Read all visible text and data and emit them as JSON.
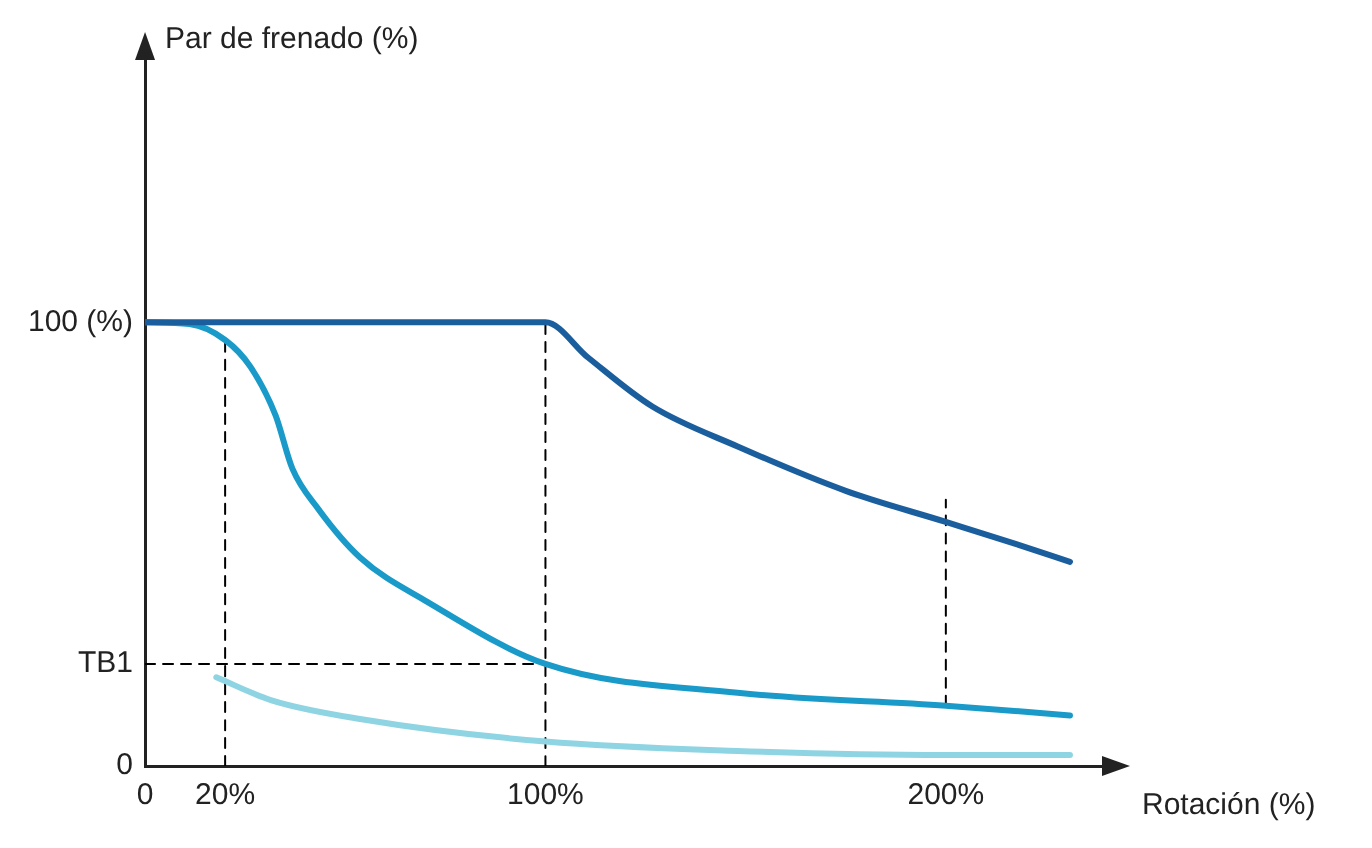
{
  "chart_data": {
    "type": "line",
    "xlabel": "Rotación (%)",
    "ylabel": "Par de frenado (%)",
    "xlim": [
      0,
      240
    ],
    "xticks": [
      0,
      {
        "value": 20,
        "label": "20%"
      },
      {
        "value": 100,
        "label": "100%"
      },
      {
        "value": 200,
        "label": "200%"
      }
    ],
    "ylim": [
      0,
      160
    ],
    "yticks": [
      0,
      {
        "value": 23,
        "label": "TB1"
      },
      {
        "value": 100,
        "label": "100 (%)"
      }
    ],
    "grid": false,
    "legend": false,
    "marker": "none",
    "series": [
      {
        "color": "#1b5e9e",
        "x": [
          0,
          100,
          110.7,
          126.7,
          148,
          175,
          200,
          217.6,
          231
        ],
        "values": [
          100,
          100,
          92,
          81,
          72,
          62,
          55,
          50,
          46
        ]
      },
      {
        "color": "#1a9ac8",
        "x": [
          0,
          11.1,
          20,
          26.3,
          32.6,
          36.8,
          43.2,
          53.7,
          70.5,
          100,
          148,
          200,
          231
        ],
        "values": [
          100,
          99.6,
          96,
          90,
          79,
          67,
          58,
          47,
          37,
          23,
          16.5,
          13.6,
          11.4
        ]
      },
      {
        "color": "#8fd4e2",
        "x": [
          17.8,
          31.6,
          53.7,
          100,
          148,
          200,
          231
        ],
        "values": [
          20,
          14.8,
          10.6,
          5.5,
          3.4,
          2.5,
          2.5
        ]
      },
      {
        "color": "#000000",
        "line_style": "dashed",
        "x": [
          20,
          20
        ],
        "values": [
          0,
          96
        ]
      },
      {
        "color": "#000000",
        "line_style": "dashed",
        "x": [
          100,
          100
        ],
        "values": [
          0,
          100
        ]
      },
      {
        "color": "#000000",
        "line_style": "dashed",
        "x": [
          200,
          200
        ],
        "values": [
          13.6,
          60
        ]
      },
      {
        "color": "#000000",
        "line_style": "dashed",
        "x": [
          0,
          100
        ],
        "values": [
          23,
          23
        ]
      }
    ]
  }
}
